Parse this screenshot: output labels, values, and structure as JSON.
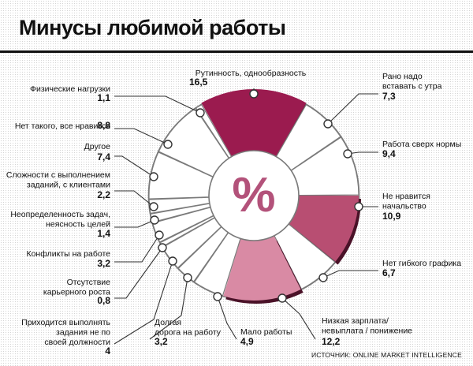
{
  "title": "Минусы любимой работы",
  "source": "ИСТОЧНИК: ONLINE MARKET INTELLIGENCE",
  "center_symbol": "%",
  "colors": {
    "slice_dark": "#9b1b4f",
    "slice_medium": "#b84e72",
    "slice_light": "#d98aa4",
    "slice_empty": "#ffffff",
    "shadow": "#4a1228",
    "outline": "#7a7a7a",
    "percent_sign": "#b3527a"
  },
  "chart_data": {
    "type": "pie",
    "note_values_unit": "%",
    "categories": [
      {
        "label": "Рутинность, однообразность",
        "value": 16.5,
        "value_label": "16,5",
        "color": "slice_dark"
      },
      {
        "label": "Рано надо вставать с утра",
        "value": 7.3,
        "value_label": "7,3",
        "color": "slice_empty"
      },
      {
        "label": "Работа сверх нормы",
        "value": 9.4,
        "value_label": "9,4",
        "color": "slice_empty"
      },
      {
        "label": "Не нравится начальство",
        "value": 10.9,
        "value_label": "10,9",
        "color": "slice_medium"
      },
      {
        "label": "Нет гибкого графика",
        "value": 6.7,
        "value_label": "6,7",
        "color": "slice_empty"
      },
      {
        "label": "Низкая зарплата/ невыплата / понижение",
        "value": 12.2,
        "value_label": "12,2",
        "color": "slice_light"
      },
      {
        "label": "Мало работы",
        "value": 4.9,
        "value_label": "4,9",
        "color": "slice_empty"
      },
      {
        "label": "Долгая дорога на работу",
        "value": 3.2,
        "value_label": "3,2",
        "color": "slice_empty"
      },
      {
        "label": "Приходится выполнять задания не по своей должности",
        "value": 4,
        "value_label": "4",
        "color": "slice_empty"
      },
      {
        "label": "Отсутствие карьерного роста",
        "value": 0.8,
        "value_label": "0,8",
        "color": "slice_empty"
      },
      {
        "label": "Конфликты на работе",
        "value": 3.2,
        "value_label": "3,2",
        "color": "slice_empty"
      },
      {
        "label": "Неопределенность задач, неясность целей",
        "value": 1.4,
        "value_label": "1,4",
        "color": "slice_empty"
      },
      {
        "label": "Сложности с выполнением заданий, с клиентами",
        "value": 2.2,
        "value_label": "2,2",
        "color": "slice_empty"
      },
      {
        "label": "Другое",
        "value": 7.4,
        "value_label": "7,4",
        "color": "slice_empty"
      },
      {
        "label": "Нет такого, все нравится",
        "value": 8.8,
        "value_label": "8,8",
        "color": "slice_empty"
      },
      {
        "label": "Физические нагрузки",
        "value": 1.1,
        "value_label": "1,1",
        "color": "slice_empty"
      }
    ]
  }
}
